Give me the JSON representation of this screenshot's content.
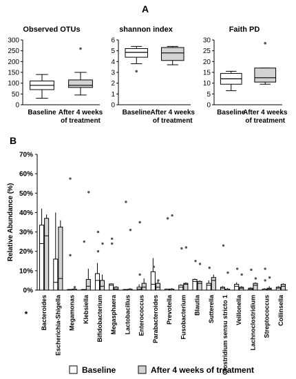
{
  "panel_labels": {
    "a": "A",
    "b": "B"
  },
  "colors": {
    "baseline_fill": "#ffffff",
    "treatment_fill": "#d3d3d3",
    "stroke": "#000000",
    "text": "#000000"
  },
  "legend": {
    "baseline_label": "Baseline",
    "treatment_label": "After 4 weeks of treatment"
  },
  "chart_data": [
    {
      "type": "box",
      "title": "Observed OTUs",
      "categories": [
        "Baseline",
        "After 4 weeks\nof treatment"
      ],
      "ylim": [
        0,
        300
      ],
      "yticks": [
        0,
        50,
        100,
        150,
        200,
        250,
        300
      ],
      "grid": false,
      "boxes": [
        {
          "q1": 70,
          "median": 90,
          "q3": 110,
          "whisker_low": 30,
          "whisker_high": 140,
          "outliers": []
        },
        {
          "q1": 80,
          "median": 90,
          "q3": 115,
          "whisker_low": 45,
          "whisker_high": 150,
          "outliers": [
            260
          ]
        }
      ]
    },
    {
      "type": "box",
      "title": "shannon index",
      "categories": [
        "Baseline",
        "After 4 weeks\nof treatment"
      ],
      "ylim": [
        0,
        6
      ],
      "yticks": [
        0,
        1,
        2,
        3,
        4,
        5,
        6
      ],
      "grid": false,
      "boxes": [
        {
          "q1": 4.4,
          "median": 4.85,
          "q3": 5.2,
          "whisker_low": 3.8,
          "whisker_high": 5.4,
          "outliers": [
            3.1
          ]
        },
        {
          "q1": 4.1,
          "median": 4.8,
          "q3": 5.3,
          "whisker_low": 3.7,
          "whisker_high": 5.4,
          "outliers": []
        }
      ]
    },
    {
      "type": "box",
      "title": "Faith PD",
      "categories": [
        "Baseline",
        "After 4 weeks\nof treatment"
      ],
      "ylim": [
        0,
        30
      ],
      "yticks": [
        0,
        5,
        10,
        15,
        20,
        25,
        30
      ],
      "grid": false,
      "boxes": [
        {
          "q1": 9.5,
          "median": 12,
          "q3": 14.5,
          "whisker_low": 6.5,
          "whisker_high": 15.5,
          "outliers": []
        },
        {
          "q1": 10.5,
          "median": 12.5,
          "q3": 17,
          "whisker_low": 9.5,
          "whisker_high": 17,
          "outliers": [
            28.5
          ]
        }
      ]
    },
    {
      "type": "bar",
      "xlabel": "",
      "ylabel": "Relative Abundance (%)",
      "ylim": [
        0,
        70
      ],
      "yticks": [
        0,
        10,
        20,
        30,
        40,
        50,
        60,
        70
      ],
      "ytick_labels": [
        "0%",
        "10%",
        "20%",
        "30%",
        "40%",
        "50%",
        "60%",
        "70%"
      ],
      "grid": false,
      "star_marker": "*",
      "legend_position": "bottom",
      "categories": [
        "Bacteroides",
        "Escherichia-Shigella",
        "Megamonas",
        "Klebsiella",
        "Bifidobacterium",
        "Megasphaera",
        "Lactobacillus",
        "Enterococcus",
        "Parabacteroides",
        "Prevotella",
        "Fusobacterium",
        "Blautia",
        "Sutterella",
        "Clostridium sensu stricto 1",
        "Veillonella",
        "Lachnoclostridium",
        "Streptococcus",
        "Collinsella"
      ],
      "series": [
        {
          "name": "Baseline",
          "values": [
            33.5,
            16,
            0.3,
            0.3,
            8.5,
            3.2,
            0.3,
            1.5,
            9.5,
            0.5,
            2.5,
            5.5,
            3.5,
            1.5,
            3,
            1,
            0.5,
            1.5
          ],
          "medians": [
            24,
            4,
            0,
            0,
            5,
            2.5,
            0,
            0.5,
            3,
            0,
            1.5,
            4.5,
            2.5,
            1,
            2,
            0.5,
            0,
            1
          ],
          "whiskers": [
            [
              0,
              42
            ],
            [
              0,
              40
            ],
            [
              0,
              0.5
            ],
            [
              0,
              0.5
            ],
            [
              0,
              14
            ],
            [
              0,
              3.5
            ],
            [
              0,
              0.5
            ],
            [
              0,
              3
            ],
            [
              0,
              16.5
            ],
            [
              0,
              0.5
            ],
            [
              0,
              3
            ],
            [
              0,
              6
            ],
            [
              0,
              5
            ],
            [
              0,
              2
            ],
            [
              0,
              4
            ],
            [
              0,
              1.5
            ],
            [
              0,
              1
            ],
            [
              0,
              2
            ]
          ],
          "outliers": [
            [],
            [],
            [
              57.5,
              18
            ],
            [
              25
            ],
            [
              30,
              20
            ],
            [
              26.5,
              24
            ],
            [
              45.5
            ],
            [
              35,
              8
            ],
            [
              12
            ],
            [
              37
            ],
            [
              21.5
            ],
            [
              15
            ],
            [
              11.5
            ],
            [
              23
            ],
            [
              11
            ],
            [
              10.5
            ],
            [
              11,
              5
            ],
            []
          ]
        },
        {
          "name": "After 4 weeks of treatment",
          "values": [
            37,
            32.5,
            0.5,
            5.5,
            5,
            1.5,
            0.5,
            3.5,
            3.5,
            0.5,
            3.5,
            4.5,
            6.5,
            0.5,
            1.5,
            3.5,
            1,
            3
          ],
          "medians": [
            28,
            6,
            0,
            2,
            2,
            0.5,
            0,
            1.5,
            1.5,
            0,
            3,
            3.5,
            5,
            0,
            1,
            2.5,
            0.5,
            2
          ],
          "whiskers": [
            [
              0,
              39
            ],
            [
              0,
              36
            ],
            [
              0,
              1
            ],
            [
              0,
              11
            ],
            [
              0,
              8
            ],
            [
              0,
              2
            ],
            [
              0,
              1
            ],
            [
              0,
              6
            ],
            [
              0,
              5
            ],
            [
              0,
              1
            ],
            [
              0,
              4
            ],
            [
              0,
              5
            ],
            [
              0,
              8
            ],
            [
              0,
              1
            ],
            [
              0,
              2
            ],
            [
              0,
              4
            ],
            [
              0,
              2
            ],
            [
              0,
              3.5
            ]
          ],
          "outliers": [
            [],
            [],
            [
              1.5
            ],
            [
              50.5
            ],
            [
              24
            ],
            [],
            [
              31
            ],
            [],
            [
              5
            ],
            [
              38.5
            ],
            [
              22
            ],
            [
              13.5
            ],
            [],
            [
              9
            ],
            [
              8
            ],
            [
              6
            ],
            [
              6.5
            ],
            []
          ]
        }
      ]
    }
  ]
}
